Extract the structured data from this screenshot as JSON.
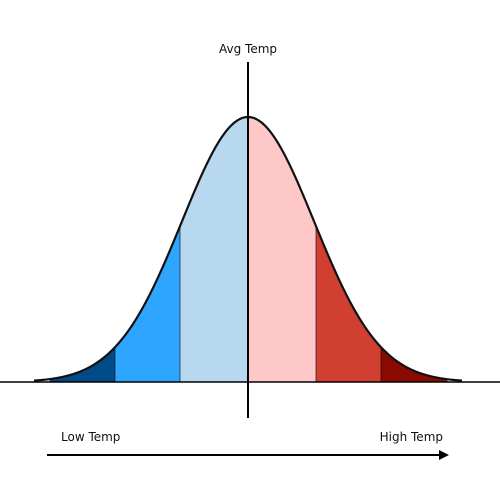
{
  "labels": {
    "top": "Avg Temp",
    "left": "Low Temp",
    "right": "High Temp"
  },
  "bands": [
    {
      "name": "band-dark-blue",
      "color": "#004b87"
    },
    {
      "name": "band-blue",
      "color": "#2ea6ff"
    },
    {
      "name": "band-light-blue",
      "color": "#b8d8f0"
    },
    {
      "name": "band-light-red",
      "color": "#ffc8c8"
    },
    {
      "name": "band-red",
      "color": "#d13f30"
    },
    {
      "name": "band-dark-red",
      "color": "#8b0a00"
    }
  ],
  "colors": {
    "outline": "#111111",
    "axis": "#000000"
  }
}
